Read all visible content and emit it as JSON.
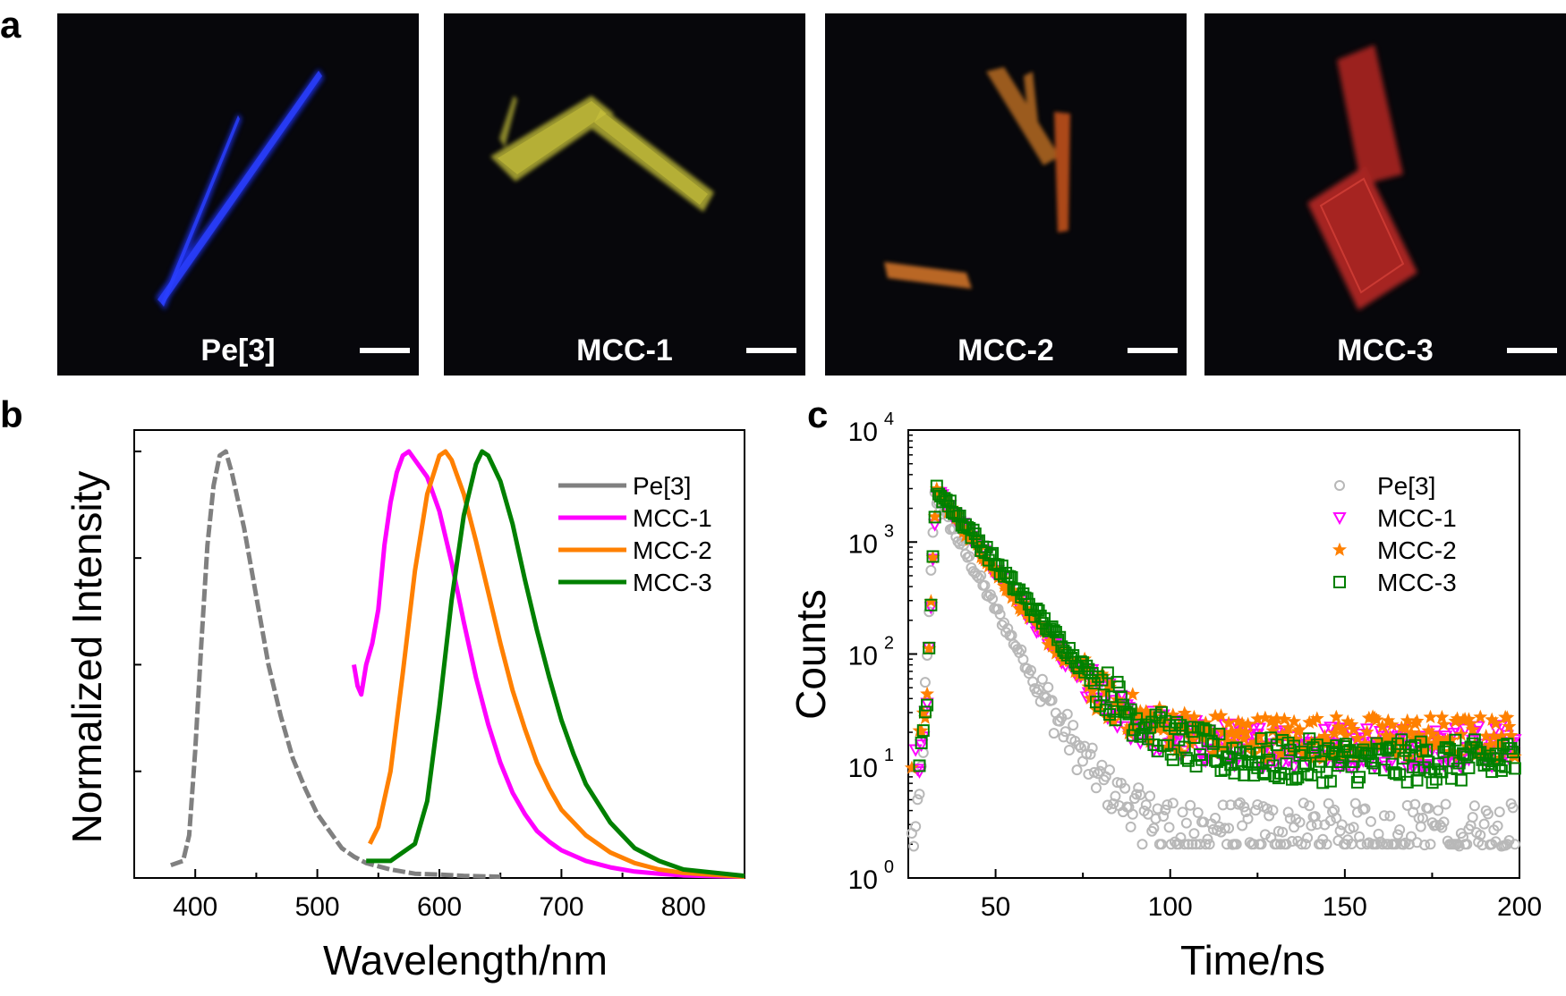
{
  "panel_labels": {
    "a": "a",
    "b": "b",
    "c": "c"
  },
  "micrographs": [
    {
      "label": "Pe[3]",
      "color": "#1a2ee6"
    },
    {
      "label": "MCC-1",
      "color": "#c9c33a"
    },
    {
      "label": "MCC-2",
      "color": "#d98a2a"
    },
    {
      "label": "MCC-3",
      "color": "#d8302c"
    }
  ],
  "chart_data": [
    {
      "type": "line",
      "panel": "b",
      "title": "",
      "xlabel": "Wavelength/nm",
      "ylabel": "Normalized Intensity",
      "xlim": [
        350,
        850
      ],
      "ylim": [
        0,
        1.05
      ],
      "xticks": [
        400,
        500,
        600,
        700,
        800
      ],
      "legend_position": "top-right",
      "series": [
        {
          "name": "Pe[3]",
          "color": "#808080",
          "dashed": true,
          "x": [
            380,
            390,
            395,
            400,
            405,
            410,
            415,
            420,
            425,
            430,
            440,
            450,
            460,
            470,
            480,
            490,
            500,
            510,
            520,
            530,
            540,
            560,
            580,
            600,
            620,
            650
          ],
          "y": [
            0.03,
            0.04,
            0.1,
            0.3,
            0.55,
            0.78,
            0.92,
            0.99,
            1.0,
            0.95,
            0.82,
            0.66,
            0.5,
            0.38,
            0.28,
            0.21,
            0.15,
            0.11,
            0.07,
            0.05,
            0.035,
            0.02,
            0.01,
            0.008,
            0.005,
            0.003
          ]
        },
        {
          "name": "MCC-1",
          "color": "#ff00ff",
          "dashed": false,
          "x": [
            530,
            533,
            536,
            540,
            545,
            550,
            555,
            560,
            565,
            570,
            575,
            580,
            590,
            600,
            610,
            620,
            630,
            640,
            650,
            660,
            670,
            680,
            690,
            700,
            720,
            740,
            760,
            780,
            800,
            850
          ],
          "y": [
            0.5,
            0.45,
            0.43,
            0.5,
            0.55,
            0.63,
            0.78,
            0.88,
            0.95,
            0.99,
            1.0,
            0.98,
            0.94,
            0.86,
            0.74,
            0.6,
            0.47,
            0.36,
            0.27,
            0.2,
            0.15,
            0.11,
            0.085,
            0.065,
            0.04,
            0.025,
            0.015,
            0.01,
            0.006,
            0.003
          ]
        },
        {
          "name": "MCC-2",
          "color": "#ff8000",
          "dashed": false,
          "x": [
            543,
            550,
            560,
            570,
            580,
            590,
            600,
            605,
            610,
            620,
            630,
            640,
            650,
            660,
            670,
            680,
            690,
            700,
            720,
            740,
            760,
            780,
            800,
            850
          ],
          "y": [
            0.08,
            0.12,
            0.25,
            0.48,
            0.72,
            0.9,
            0.99,
            1.0,
            0.98,
            0.9,
            0.79,
            0.67,
            0.55,
            0.44,
            0.35,
            0.27,
            0.21,
            0.16,
            0.1,
            0.06,
            0.035,
            0.02,
            0.012,
            0.003
          ]
        },
        {
          "name": "MCC-3",
          "color": "#008000",
          "dashed": false,
          "x": [
            540,
            560,
            580,
            590,
            600,
            610,
            620,
            630,
            635,
            640,
            650,
            660,
            670,
            680,
            690,
            700,
            710,
            720,
            740,
            760,
            780,
            800,
            850
          ],
          "y": [
            0.04,
            0.04,
            0.08,
            0.18,
            0.4,
            0.65,
            0.85,
            0.97,
            1.0,
            0.99,
            0.93,
            0.83,
            0.7,
            0.58,
            0.47,
            0.37,
            0.29,
            0.22,
            0.13,
            0.07,
            0.04,
            0.02,
            0.005
          ]
        }
      ]
    },
    {
      "type": "scatter",
      "panel": "c",
      "title": "",
      "xlabel": "Time/ns",
      "ylabel": "Counts",
      "xlim": [
        25,
        200
      ],
      "ylim": [
        1,
        10000
      ],
      "yscale": "log",
      "xticks": [
        50,
        100,
        150,
        200
      ],
      "yticks": [
        1,
        10,
        100,
        1000,
        10000
      ],
      "ytick_labels": [
        {
          "base": "10",
          "exp": "0"
        },
        {
          "base": "10",
          "exp": "1"
        },
        {
          "base": "10",
          "exp": "2"
        },
        {
          "base": "10",
          "exp": "3"
        },
        {
          "base": "10",
          "exp": "4"
        }
      ],
      "legend_position": "top-right",
      "series": [
        {
          "name": "Pe[3]",
          "color": "#b8b8b8",
          "marker": "circle",
          "peak_t": 32.5,
          "peak_counts": 2600,
          "tau": 7.5,
          "baseline": 3
        },
        {
          "name": "MCC-1",
          "color": "#ff00ff",
          "marker": "triangle-down",
          "peak_t": 33,
          "peak_counts": 2900,
          "tau": 10,
          "baseline": 15
        },
        {
          "name": "MCC-2",
          "color": "#ff8000",
          "marker": "star",
          "peak_t": 33,
          "peak_counts": 2900,
          "tau": 10,
          "baseline": 18
        },
        {
          "name": "MCC-3",
          "color": "#008000",
          "marker": "square",
          "peak_t": 33,
          "peak_counts": 3000,
          "tau": 11,
          "baseline": 11
        }
      ]
    }
  ]
}
